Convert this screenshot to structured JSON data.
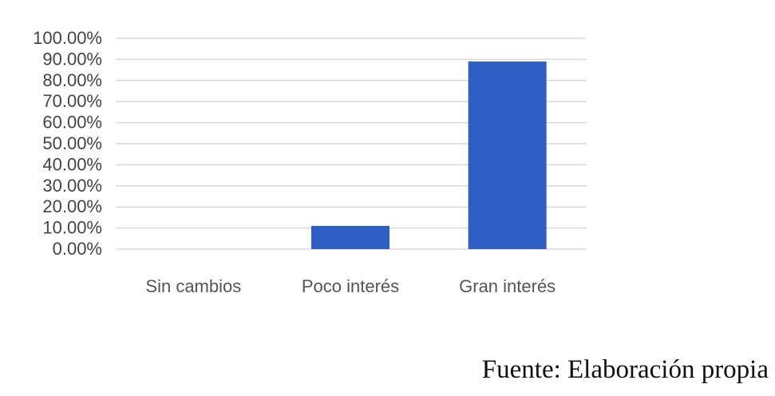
{
  "chart_data": {
    "type": "bar",
    "categories": [
      "Sin cambios",
      "Poco interés",
      "Gran interés"
    ],
    "values": [
      0,
      11,
      89
    ],
    "ylim": [
      0,
      100
    ],
    "yticks": [
      "0.00%",
      "10.00%",
      "20.00%",
      "30.00%",
      "40.00%",
      "50.00%",
      "60.00%",
      "70.00%",
      "80.00%",
      "90.00%",
      "100.00%"
    ],
    "grid": true,
    "legend": "none",
    "bar_color": "#2f5fc4",
    "grid_color": "#d9d9d9"
  },
  "source": "Fuente: Elaboración propia"
}
